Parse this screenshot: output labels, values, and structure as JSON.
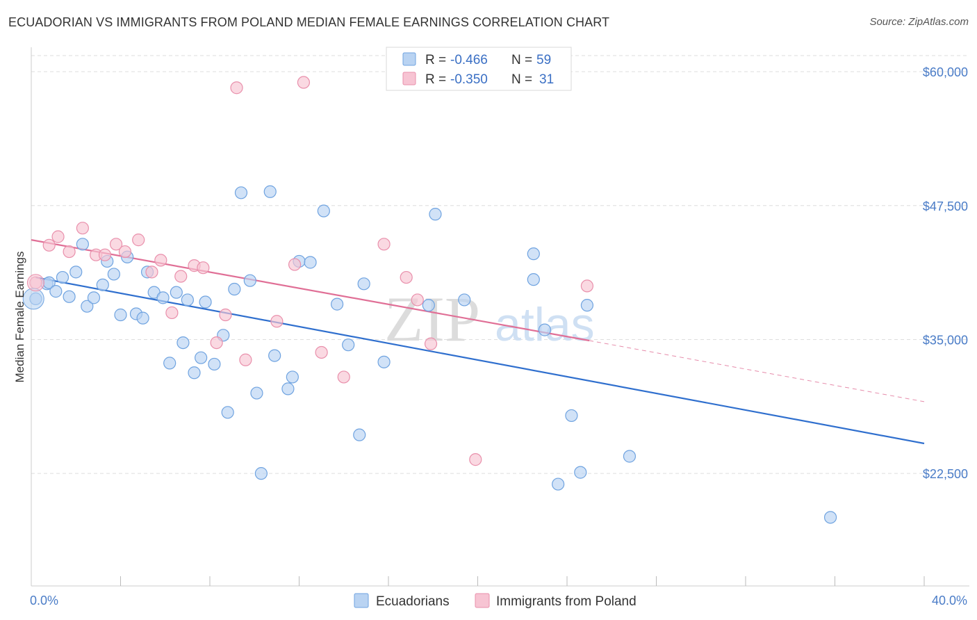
{
  "title": "ECUADORIAN VS IMMIGRANTS FROM POLAND MEDIAN FEMALE EARNINGS CORRELATION CHART",
  "source": "Source: ZipAtlas.com",
  "watermark": {
    "zip": "ZIP",
    "atlas": "atlas"
  },
  "chart_data": {
    "type": "scatter",
    "ylabel": "Median Female Earnings",
    "xlim": [
      0,
      40
    ],
    "ylim": [
      12000,
      61500
    ],
    "x_tick_labels": [
      {
        "value": 0,
        "label": "0.0%"
      },
      {
        "value": 40,
        "label": "40.0%"
      }
    ],
    "x_minor_ticks": [
      4,
      8,
      12,
      16,
      20,
      24,
      28,
      32,
      36,
      40
    ],
    "y_ticks": [
      {
        "value": 60000,
        "label": "$60,000"
      },
      {
        "value": 47500,
        "label": "$47,500"
      },
      {
        "value": 35000,
        "label": "$35,000"
      },
      {
        "value": 22500,
        "label": "$22,500"
      }
    ],
    "grid": true,
    "legend_position": "top-center",
    "stats": [
      {
        "r_label": "R = ",
        "r_value": "-0.466",
        "n_label": "N = ",
        "n_value": "59"
      },
      {
        "r_label": "R = ",
        "r_value": "-0.350",
        "n_label": "N = ",
        "n_value": "31"
      }
    ],
    "series": [
      {
        "name": "Ecuadorians",
        "color": "#6fa3e0",
        "fill": "#b9d3f2",
        "trend_color": "#2f6fce",
        "trend": {
          "x0": 0.2,
          "y0": 40800,
          "x1": 40,
          "y1": 25300
        },
        "points": [
          [
            0.2,
            38800
          ],
          [
            0.7,
            40200
          ],
          [
            0.8,
            40300
          ],
          [
            1.1,
            39500
          ],
          [
            1.4,
            40800
          ],
          [
            1.7,
            39000
          ],
          [
            2.0,
            41300
          ],
          [
            2.3,
            43900
          ],
          [
            2.5,
            38100
          ],
          [
            2.8,
            38900
          ],
          [
            3.2,
            40100
          ],
          [
            3.4,
            42300
          ],
          [
            3.7,
            41100
          ],
          [
            4.0,
            37300
          ],
          [
            4.3,
            42700
          ],
          [
            4.7,
            37400
          ],
          [
            5.0,
            37000
          ],
          [
            5.2,
            41300
          ],
          [
            5.5,
            39400
          ],
          [
            5.9,
            38900
          ],
          [
            6.2,
            32800
          ],
          [
            6.5,
            39400
          ],
          [
            6.8,
            34700
          ],
          [
            7.0,
            38700
          ],
          [
            7.3,
            31900
          ],
          [
            7.6,
            33300
          ],
          [
            7.8,
            38500
          ],
          [
            8.2,
            32700
          ],
          [
            8.6,
            35400
          ],
          [
            8.8,
            28200
          ],
          [
            9.1,
            39700
          ],
          [
            9.4,
            48700
          ],
          [
            9.8,
            40500
          ],
          [
            10.1,
            30000
          ],
          [
            10.3,
            22500
          ],
          [
            10.7,
            48800
          ],
          [
            10.9,
            33500
          ],
          [
            11.5,
            30400
          ],
          [
            11.7,
            31500
          ],
          [
            12.0,
            42300
          ],
          [
            12.5,
            42200
          ],
          [
            13.1,
            47000
          ],
          [
            13.7,
            38300
          ],
          [
            14.2,
            34500
          ],
          [
            14.7,
            26100
          ],
          [
            14.9,
            40200
          ],
          [
            15.8,
            32900
          ],
          [
            17.8,
            38200
          ],
          [
            18.1,
            46700
          ],
          [
            19.4,
            38700
          ],
          [
            22.5,
            40600
          ],
          [
            22.5,
            43000
          ],
          [
            23.0,
            35900
          ],
          [
            24.2,
            27900
          ],
          [
            24.6,
            22600
          ],
          [
            24.9,
            38200
          ],
          [
            26.8,
            24100
          ],
          [
            23.6,
            21500
          ],
          [
            35.8,
            18400
          ]
        ]
      },
      {
        "name": "Immigrants from Poland",
        "color": "#e98fab",
        "fill": "#f7c4d3",
        "trend_color": "#e06f96",
        "trend": {
          "x0": 0.0,
          "y0": 44300,
          "x1": 25.0,
          "y1": 34900
        },
        "trend_ext": {
          "x0": 25.0,
          "y0": 34900,
          "x1": 40.0,
          "y1": 29200
        },
        "points": [
          [
            0.2,
            40300
          ],
          [
            0.8,
            43800
          ],
          [
            1.2,
            44600
          ],
          [
            1.7,
            43200
          ],
          [
            2.3,
            45400
          ],
          [
            2.9,
            42900
          ],
          [
            3.3,
            42900
          ],
          [
            3.8,
            43900
          ],
          [
            4.2,
            43200
          ],
          [
            4.8,
            44300
          ],
          [
            5.4,
            41300
          ],
          [
            5.8,
            42400
          ],
          [
            6.3,
            37500
          ],
          [
            6.7,
            40900
          ],
          [
            7.3,
            41900
          ],
          [
            7.7,
            41700
          ],
          [
            8.3,
            34700
          ],
          [
            8.7,
            37300
          ],
          [
            9.2,
            58500
          ],
          [
            9.6,
            33100
          ],
          [
            11.0,
            36700
          ],
          [
            11.8,
            42000
          ],
          [
            12.2,
            59000
          ],
          [
            13.0,
            33800
          ],
          [
            14.0,
            31500
          ],
          [
            15.8,
            43900
          ],
          [
            16.8,
            40800
          ],
          [
            17.3,
            38700
          ],
          [
            17.9,
            34600
          ],
          [
            19.9,
            23800
          ],
          [
            24.9,
            40000
          ]
        ]
      }
    ]
  }
}
